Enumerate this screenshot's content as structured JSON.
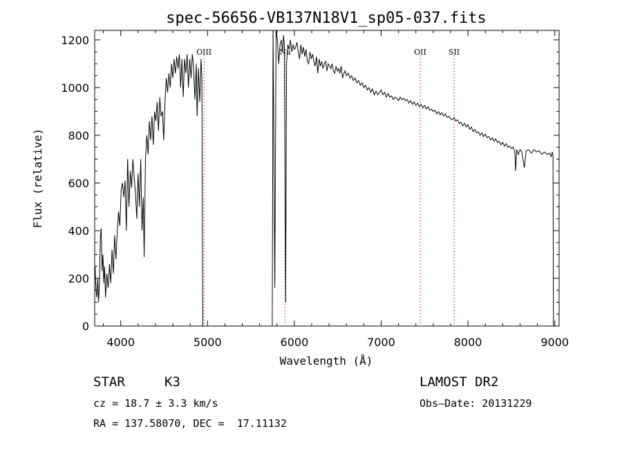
{
  "chart_data": {
    "type": "line",
    "title": "spec-56656-VB137N18V1_sp05-037.fits",
    "xlabel": "Wavelength (Å)",
    "ylabel": "Flux (relative)",
    "xlim": [
      3700,
      9050
    ],
    "ylim": [
      0,
      1240
    ],
    "xticks": [
      4000,
      5000,
      6000,
      7000,
      8000,
      9000
    ],
    "yticks": [
      0,
      200,
      400,
      600,
      800,
      1000,
      1200
    ],
    "grid": false,
    "line_color": "#000000",
    "marker_color": "#cc0000",
    "gaps": [
      [
        4950,
        5740
      ]
    ],
    "series": [
      {
        "points": [
          [
            3705,
            250
          ],
          [
            3715,
            150
          ],
          [
            3725,
            120
          ],
          [
            3735,
            200
          ],
          [
            3745,
            100
          ],
          [
            3755,
            180
          ],
          [
            3765,
            370
          ],
          [
            3775,
            410
          ],
          [
            3785,
            230
          ],
          [
            3795,
            300
          ],
          [
            3805,
            180
          ],
          [
            3815,
            250
          ],
          [
            3825,
            120
          ],
          [
            3840,
            220
          ],
          [
            3855,
            160
          ],
          [
            3870,
            260
          ],
          [
            3885,
            180
          ],
          [
            3900,
            320
          ],
          [
            3915,
            220
          ],
          [
            3930,
            380
          ],
          [
            3945,
            280
          ],
          [
            3960,
            400
          ],
          [
            3975,
            480
          ],
          [
            3990,
            420
          ],
          [
            4005,
            570
          ],
          [
            4020,
            600
          ],
          [
            4035,
            540
          ],
          [
            4050,
            610
          ],
          [
            4065,
            400
          ],
          [
            4080,
            700
          ],
          [
            4095,
            500
          ],
          [
            4110,
            650
          ],
          [
            4125,
            580
          ],
          [
            4140,
            700
          ],
          [
            4155,
            620
          ],
          [
            4170,
            560
          ],
          [
            4185,
            450
          ],
          [
            4200,
            640
          ],
          [
            4215,
            500
          ],
          [
            4230,
            700
          ],
          [
            4245,
            400
          ],
          [
            4260,
            540
          ],
          [
            4270,
            290
          ],
          [
            4285,
            700
          ],
          [
            4300,
            800
          ],
          [
            4315,
            720
          ],
          [
            4330,
            860
          ],
          [
            4345,
            780
          ],
          [
            4360,
            880
          ],
          [
            4375,
            760
          ],
          [
            4390,
            900
          ],
          [
            4405,
            860
          ],
          [
            4420,
            940
          ],
          [
            4435,
            820
          ],
          [
            4450,
            960
          ],
          [
            4465,
            880
          ],
          [
            4480,
            900
          ],
          [
            4495,
            780
          ],
          [
            4510,
            940
          ],
          [
            4525,
            1040
          ],
          [
            4540,
            980
          ],
          [
            4555,
            1060
          ],
          [
            4570,
            1000
          ],
          [
            4585,
            1100
          ],
          [
            4600,
            1040
          ],
          [
            4615,
            1120
          ],
          [
            4630,
            1060
          ],
          [
            4645,
            1130
          ],
          [
            4660,
            1080
          ],
          [
            4675,
            1140
          ],
          [
            4690,
            1000
          ],
          [
            4705,
            1120
          ],
          [
            4720,
            960
          ],
          [
            4735,
            1120
          ],
          [
            4750,
            1060
          ],
          [
            4765,
            1140
          ],
          [
            4780,
            1000
          ],
          [
            4795,
            1120
          ],
          [
            4810,
            1040
          ],
          [
            4825,
            1140
          ],
          [
            4840,
            1080
          ],
          [
            4855,
            950
          ],
          [
            4870,
            1100
          ],
          [
            4880,
            880
          ],
          [
            4895,
            1080
          ],
          [
            4910,
            940
          ],
          [
            4925,
            1120
          ],
          [
            4935,
            1040
          ],
          [
            4945,
            0
          ],
          [
            5745,
            0
          ],
          [
            5755,
            1240
          ],
          [
            5765,
            700
          ],
          [
            5775,
            160
          ],
          [
            5790,
            1240
          ],
          [
            5805,
            1200
          ],
          [
            5820,
            1100
          ],
          [
            5835,
            1180
          ],
          [
            5850,
            1200
          ],
          [
            5865,
            1150
          ],
          [
            5875,
            1220
          ],
          [
            5885,
            1180
          ],
          [
            5900,
            100
          ],
          [
            5910,
            1100
          ],
          [
            5925,
            1180
          ],
          [
            5940,
            1160
          ],
          [
            5955,
            1200
          ],
          [
            5970,
            1150
          ],
          [
            5985,
            1180
          ],
          [
            6000,
            1160
          ],
          [
            6015,
            1170
          ],
          [
            6030,
            1190
          ],
          [
            6045,
            1150
          ],
          [
            6060,
            1120
          ],
          [
            6075,
            1180
          ],
          [
            6090,
            1140
          ],
          [
            6105,
            1170
          ],
          [
            6120,
            1130
          ],
          [
            6135,
            1160
          ],
          [
            6150,
            1110
          ],
          [
            6165,
            1100
          ],
          [
            6180,
            1150
          ],
          [
            6195,
            1120
          ],
          [
            6210,
            1140
          ],
          [
            6225,
            1110
          ],
          [
            6240,
            1090
          ],
          [
            6255,
            1130
          ],
          [
            6270,
            1060
          ],
          [
            6285,
            1120
          ],
          [
            6300,
            1090
          ],
          [
            6315,
            1110
          ],
          [
            6330,
            1080
          ],
          [
            6345,
            1100
          ],
          [
            6360,
            1110
          ],
          [
            6375,
            1070
          ],
          [
            6390,
            1100
          ],
          [
            6405,
            1090
          ],
          [
            6420,
            1080
          ],
          [
            6435,
            1100
          ],
          [
            6450,
            1070
          ],
          [
            6465,
            1060
          ],
          [
            6480,
            1090
          ],
          [
            6495,
            1070
          ],
          [
            6510,
            1080
          ],
          [
            6525,
            1060
          ],
          [
            6540,
            1090
          ],
          [
            6555,
            1040
          ],
          [
            6570,
            1060
          ],
          [
            6585,
            1070
          ],
          [
            6600,
            1050
          ],
          [
            6620,
            1060
          ],
          [
            6640,
            1040
          ],
          [
            6660,
            1050
          ],
          [
            6680,
            1030
          ],
          [
            6700,
            1040
          ],
          [
            6720,
            1020
          ],
          [
            6740,
            1030
          ],
          [
            6760,
            1010
          ],
          [
            6780,
            1020
          ],
          [
            6800,
            1000
          ],
          [
            6820,
            1010
          ],
          [
            6840,
            990
          ],
          [
            6860,
            1000
          ],
          [
            6880,
            980
          ],
          [
            6900,
            995
          ],
          [
            6920,
            970
          ],
          [
            6940,
            985
          ],
          [
            6960,
            970
          ],
          [
            6980,
            980
          ],
          [
            7000,
            990
          ],
          [
            7020,
            970
          ],
          [
            7040,
            980
          ],
          [
            7060,
            960
          ],
          [
            7080,
            975
          ],
          [
            7100,
            960
          ],
          [
            7120,
            965
          ],
          [
            7140,
            950
          ],
          [
            7160,
            960
          ],
          [
            7180,
            955
          ],
          [
            7200,
            945
          ],
          [
            7220,
            960
          ],
          [
            7240,
            950
          ],
          [
            7260,
            955
          ],
          [
            7280,
            945
          ],
          [
            7300,
            950
          ],
          [
            7320,
            935
          ],
          [
            7340,
            945
          ],
          [
            7360,
            930
          ],
          [
            7380,
            940
          ],
          [
            7400,
            925
          ],
          [
            7420,
            935
          ],
          [
            7440,
            920
          ],
          [
            7460,
            930
          ],
          [
            7480,
            915
          ],
          [
            7500,
            925
          ],
          [
            7520,
            910
          ],
          [
            7540,
            920
          ],
          [
            7560,
            905
          ],
          [
            7580,
            910
          ],
          [
            7600,
            900
          ],
          [
            7620,
            905
          ],
          [
            7640,
            890
          ],
          [
            7660,
            900
          ],
          [
            7680,
            885
          ],
          [
            7700,
            895
          ],
          [
            7720,
            880
          ],
          [
            7740,
            890
          ],
          [
            7760,
            875
          ],
          [
            7780,
            880
          ],
          [
            7800,
            870
          ],
          [
            7820,
            865
          ],
          [
            7840,
            875
          ],
          [
            7860,
            860
          ],
          [
            7880,
            865
          ],
          [
            7900,
            850
          ],
          [
            7920,
            855
          ],
          [
            7940,
            840
          ],
          [
            7960,
            850
          ],
          [
            7980,
            835
          ],
          [
            8000,
            845
          ],
          [
            8020,
            825
          ],
          [
            8040,
            835
          ],
          [
            8060,
            815
          ],
          [
            8080,
            825
          ],
          [
            8100,
            810
          ],
          [
            8120,
            815
          ],
          [
            8140,
            800
          ],
          [
            8160,
            810
          ],
          [
            8180,
            795
          ],
          [
            8200,
            805
          ],
          [
            8220,
            790
          ],
          [
            8240,
            795
          ],
          [
            8260,
            780
          ],
          [
            8280,
            790
          ],
          [
            8300,
            775
          ],
          [
            8320,
            785
          ],
          [
            8340,
            770
          ],
          [
            8360,
            775
          ],
          [
            8380,
            760
          ],
          [
            8400,
            770
          ],
          [
            8420,
            755
          ],
          [
            8440,
            765
          ],
          [
            8460,
            750
          ],
          [
            8480,
            755
          ],
          [
            8500,
            745
          ],
          [
            8520,
            750
          ],
          [
            8540,
            730
          ],
          [
            8550,
            650
          ],
          [
            8560,
            740
          ],
          [
            8580,
            720
          ],
          [
            8600,
            740
          ],
          [
            8620,
            730
          ],
          [
            8650,
            665
          ],
          [
            8670,
            735
          ],
          [
            8700,
            740
          ],
          [
            8730,
            725
          ],
          [
            8760,
            740
          ],
          [
            8790,
            730
          ],
          [
            8820,
            735
          ],
          [
            8850,
            720
          ],
          [
            8880,
            730
          ],
          [
            8910,
            720
          ],
          [
            8940,
            725
          ],
          [
            8960,
            710
          ],
          [
            8970,
            730
          ],
          [
            8980,
            715
          ],
          [
            8985,
            0
          ]
        ]
      }
    ],
    "line_markers": [
      {
        "label": "OIII",
        "x": 4959
      },
      {
        "label": "Na",
        "x": 5893
      },
      {
        "label": "OII",
        "x": 7450
      },
      {
        "label": "SII",
        "x": 7840
      }
    ]
  },
  "info": {
    "object_type": "STAR",
    "subclass": "K3",
    "survey": "LAMOST DR2",
    "cz": "cz = 18.7 ± 3.3 km/s",
    "obs_date": "Obs–Date: 20131229",
    "coords": "RA = 137.58070, DEC =  17.11132"
  }
}
